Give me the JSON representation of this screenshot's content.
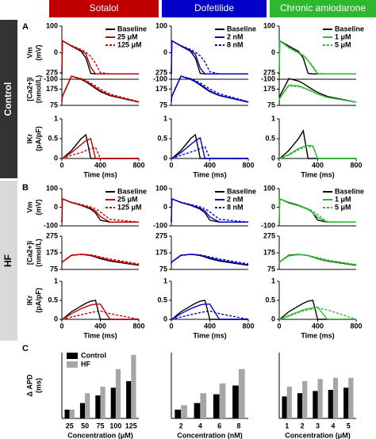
{
  "headers": [
    {
      "name": "Sotalol",
      "color": "#c00000"
    },
    {
      "name": "Dofetilide",
      "color": "#0000c8"
    },
    {
      "name": "Chronic amiodarone",
      "color": "#2eb82e"
    }
  ],
  "groups": [
    {
      "label": "Control",
      "panel": "A",
      "color": "#333333"
    },
    {
      "label": "HF",
      "panel": "B",
      "color": "#d9d9d9"
    }
  ],
  "panel_c": "C",
  "rows": [
    {
      "ylabel": "Vm",
      "yunit": "(mV)",
      "ylim": [
        -100,
        100
      ],
      "yticks": [
        -100,
        0,
        100
      ]
    },
    {
      "ylabel": "[Ca2+]i",
      "yunit": "(nmol/L)",
      "ylim": [
        75,
        275
      ],
      "yticks": [
        75,
        175,
        275
      ]
    },
    {
      "ylabel": "IKr",
      "yunit": "(pA/pF)",
      "ylim": [
        0,
        1
      ],
      "yticks": [
        0,
        0.5,
        1
      ]
    }
  ],
  "chart_data": [
    {
      "type": "line",
      "x": [
        0,
        5,
        100,
        200,
        250,
        300,
        350,
        400,
        500,
        800
      ],
      "xlim": [
        0,
        800
      ],
      "xticks": [
        0,
        400,
        800
      ],
      "xlabel": "Time (ms)",
      "series": [
        {
          "name": "Baseline",
          "color": "#000000",
          "dash": false,
          "values": [
            [
              -80,
              45,
              25,
              5,
              -20,
              -78,
              -80,
              -80,
              -80,
              -80
            ],
            [
              100,
              130,
              255,
              235,
              220,
              200,
              180,
              160,
              135,
              95
            ],
            [
              0,
              0,
              0.2,
              0.5,
              0.6,
              0,
              0,
              0,
              0,
              0
            ]
          ]
        },
        {
          "name": "25 μM",
          "color": "#c00000",
          "dash": false,
          "values": [
            [
              -80,
              45,
              26,
              8,
              -5,
              -55,
              -80,
              -80,
              -80,
              -80
            ],
            [
              100,
              130,
              255,
              237,
              223,
              205,
              185,
              165,
              138,
              96
            ],
            [
              0,
              0,
              0.15,
              0.35,
              0.45,
              0.5,
              0,
              0,
              0,
              0
            ]
          ]
        },
        {
          "name": "125 μM",
          "color": "#c00000",
          "dash": true,
          "values": [
            [
              -80,
              45,
              27,
              12,
              2,
              -15,
              -40,
              -75,
              -80,
              -80
            ],
            [
              100,
              130,
              255,
              240,
              228,
              212,
              195,
              175,
              145,
              98
            ],
            [
              0,
              0,
              0.08,
              0.15,
              0.2,
              0.25,
              0.28,
              0,
              0,
              0
            ]
          ]
        }
      ]
    },
    {
      "type": "line",
      "x": [
        0,
        5,
        100,
        200,
        250,
        300,
        350,
        400,
        500,
        800
      ],
      "xlim": [
        0,
        800
      ],
      "xticks": [
        0,
        400,
        800
      ],
      "xlabel": "Time (ms)",
      "series": [
        {
          "name": "Baseline",
          "color": "#000000",
          "dash": false,
          "values": [
            [
              -80,
              45,
              25,
              5,
              -20,
              -78,
              -80,
              -80,
              -80,
              -80
            ],
            [
              100,
              130,
              255,
              235,
              220,
              200,
              180,
              160,
              135,
              95
            ],
            [
              0,
              0,
              0.2,
              0.5,
              0.6,
              0,
              0,
              0,
              0,
              0
            ]
          ]
        },
        {
          "name": "2 nM",
          "color": "#0000c8",
          "dash": false,
          "values": [
            [
              -80,
              45,
              26,
              8,
              -6,
              -58,
              -80,
              -80,
              -80,
              -80
            ],
            [
              100,
              130,
              255,
              237,
              222,
              204,
              184,
              164,
              137,
              96
            ],
            [
              0,
              0,
              0.15,
              0.35,
              0.45,
              0.52,
              0,
              0,
              0,
              0
            ]
          ]
        },
        {
          "name": "8 nM",
          "color": "#0000c8",
          "dash": true,
          "values": [
            [
              -80,
              45,
              27,
              12,
              2,
              -12,
              -35,
              -72,
              -80,
              -80
            ],
            [
              100,
              130,
              255,
              240,
              228,
              212,
              195,
              176,
              146,
              98
            ],
            [
              0,
              0,
              0.08,
              0.16,
              0.2,
              0.25,
              0.3,
              0,
              0,
              0
            ]
          ]
        }
      ]
    },
    {
      "type": "line",
      "x": [
        0,
        5,
        100,
        200,
        250,
        300,
        350,
        400,
        500,
        800
      ],
      "xlim": [
        0,
        800
      ],
      "xticks": [
        0,
        400,
        800
      ],
      "xlabel": "Time (ms)",
      "series": [
        {
          "name": "Baseline",
          "color": "#000000",
          "dash": false,
          "values": [
            [
              -80,
              45,
              25,
              5,
              -20,
              -78,
              -80,
              -80,
              -80,
              -80
            ],
            [
              100,
              130,
              240,
              225,
              210,
              190,
              172,
              155,
              130,
              95
            ],
            [
              0,
              0,
              0.2,
              0.5,
              0.7,
              0,
              0,
              0,
              0,
              0
            ]
          ]
        },
        {
          "name": "1 μM",
          "color": "#2eb82e",
          "dash": false,
          "values": [
            [
              -80,
              45,
              20,
              0,
              -10,
              -30,
              -55,
              -80,
              -80,
              -80
            ],
            [
              100,
              120,
              200,
              195,
              185,
              172,
              160,
              145,
              125,
              95
            ],
            [
              0,
              0,
              0.1,
              0.25,
              0.3,
              0.33,
              0.32,
              0,
              0,
              0
            ]
          ]
        },
        {
          "name": "5 μM",
          "color": "#2eb82e",
          "dash": true,
          "values": [
            [
              -80,
              45,
              18,
              -2,
              -12,
              -30,
              -50,
              -78,
              -80,
              -80
            ],
            [
              100,
              118,
              195,
              190,
              182,
              170,
              158,
              144,
              124,
              95
            ],
            [
              0,
              0,
              0.08,
              0.22,
              0.27,
              0.3,
              0.3,
              0,
              0,
              0
            ]
          ]
        }
      ]
    },
    {
      "type": "line",
      "x": [
        0,
        5,
        100,
        200,
        250,
        300,
        350,
        400,
        500,
        800
      ],
      "xlim": [
        0,
        800
      ],
      "xticks": [
        0,
        400,
        800
      ],
      "xlabel": "Time (ms)",
      "series": [
        {
          "name": "Baseline",
          "color": "#000000",
          "dash": false,
          "values": [
            [
              -80,
              45,
              25,
              10,
              0,
              -10,
              -30,
              -70,
              -80,
              -80
            ],
            [
              110,
              120,
              160,
              165,
              162,
              158,
              150,
              140,
              125,
              100
            ],
            [
              0,
              0,
              0.2,
              0.35,
              0.42,
              0.48,
              0.5,
              0,
              0,
              0
            ]
          ]
        },
        {
          "name": "25 μM",
          "color": "#c00000",
          "dash": false,
          "values": [
            [
              -80,
              45,
              26,
              12,
              3,
              -5,
              -20,
              -50,
              -80,
              -80
            ],
            [
              110,
              120,
              160,
              166,
              164,
              160,
              153,
              145,
              130,
              102
            ],
            [
              0,
              0,
              0.15,
              0.28,
              0.33,
              0.38,
              0.4,
              0.4,
              0,
              0
            ]
          ]
        },
        {
          "name": "125 μM",
          "color": "#c00000",
          "dash": true,
          "values": [
            [
              -80,
              45,
              27,
              15,
              8,
              2,
              -8,
              -25,
              -65,
              -80
            ],
            [
              110,
              120,
              158,
              166,
              165,
              162,
              157,
              150,
              138,
              108
            ],
            [
              0,
              0,
              0.06,
              0.12,
              0.15,
              0.18,
              0.2,
              0.22,
              0.15,
              0
            ]
          ]
        }
      ]
    },
    {
      "type": "line",
      "x": [
        0,
        5,
        100,
        200,
        250,
        300,
        350,
        400,
        500,
        800
      ],
      "xlim": [
        0,
        800
      ],
      "xticks": [
        0,
        400,
        800
      ],
      "xlabel": "Time (ms)",
      "series": [
        {
          "name": "Baseline",
          "color": "#000000",
          "dash": false,
          "values": [
            [
              -80,
              45,
              25,
              10,
              0,
              -10,
              -30,
              -70,
              -80,
              -80
            ],
            [
              110,
              120,
              160,
              165,
              162,
              158,
              150,
              140,
              125,
              100
            ],
            [
              0,
              0,
              0.2,
              0.35,
              0.42,
              0.48,
              0.5,
              0,
              0,
              0
            ]
          ]
        },
        {
          "name": "2 nM",
          "color": "#0000c8",
          "dash": false,
          "values": [
            [
              -80,
              45,
              26,
              12,
              3,
              -5,
              -20,
              -52,
              -80,
              -80
            ],
            [
              110,
              120,
              160,
              166,
              164,
              160,
              153,
              145,
              130,
              102
            ],
            [
              0,
              0,
              0.15,
              0.28,
              0.33,
              0.38,
              0.4,
              0.4,
              0,
              0
            ]
          ]
        },
        {
          "name": "8 nM",
          "color": "#0000c8",
          "dash": true,
          "values": [
            [
              -80,
              45,
              27,
              15,
              8,
              2,
              -8,
              -25,
              -65,
              -80
            ],
            [
              110,
              120,
              158,
              166,
              165,
              162,
              157,
              150,
              138,
              108
            ],
            [
              0,
              0,
              0.06,
              0.12,
              0.15,
              0.18,
              0.2,
              0.22,
              0.15,
              0
            ]
          ]
        }
      ]
    },
    {
      "type": "line",
      "x": [
        0,
        5,
        100,
        200,
        250,
        300,
        350,
        400,
        500,
        800
      ],
      "xlim": [
        0,
        800
      ],
      "xticks": [
        0,
        400,
        800
      ],
      "xlabel": "Time (ms)",
      "series": [
        {
          "name": "Baseline",
          "color": "#000000",
          "dash": false,
          "values": [
            [
              -80,
              45,
              25,
              10,
              0,
              -10,
              -30,
              -70,
              -80,
              -80
            ],
            [
              110,
              120,
              160,
              165,
              162,
              158,
              150,
              140,
              125,
              100
            ],
            [
              0,
              0,
              0.2,
              0.35,
              0.42,
              0.48,
              0.5,
              0,
              0,
              0
            ]
          ]
        },
        {
          "name": "1 μM",
          "color": "#2eb82e",
          "dash": false,
          "values": [
            [
              -80,
              45,
              22,
              8,
              -2,
              -12,
              -30,
              -55,
              -80,
              -80
            ],
            [
              110,
              120,
              158,
              164,
              162,
              158,
              151,
              142,
              128,
              102
            ],
            [
              0,
              0,
              0.1,
              0.2,
              0.25,
              0.28,
              0.3,
              0.32,
              0,
              0
            ]
          ]
        },
        {
          "name": "5 μM",
          "color": "#2eb82e",
          "dash": true,
          "values": [
            [
              -80,
              45,
              22,
              8,
              0,
              -8,
              -20,
              -40,
              -78,
              -80
            ],
            [
              110,
              120,
              156,
              163,
              162,
              159,
              153,
              146,
              132,
              104
            ],
            [
              0,
              0,
              0.08,
              0.18,
              0.22,
              0.25,
              0.27,
              0.3,
              0.25,
              0
            ]
          ]
        }
      ]
    },
    {
      "type": "bar",
      "ylabel": "Δ APD",
      "yunit": "(ms)",
      "ylim": [
        0,
        300
      ],
      "xlabel": "Concentration (μM)",
      "legend": "top-left",
      "categories": [
        25,
        50,
        75,
        100,
        125
      ],
      "series": [
        {
          "name": "Control",
          "color": "#000000",
          "values": [
            40,
            70,
            105,
            140,
            170
          ]
        },
        {
          "name": "HF",
          "color": "#a6a6a6",
          "values": [
            40,
            115,
            145,
            225,
            290
          ]
        }
      ]
    },
    {
      "type": "bar",
      "ylim": [
        0,
        300
      ],
      "xlabel": "Concentration (nM)",
      "categories": [
        2,
        4,
        6,
        8
      ],
      "series": [
        {
          "name": "Control",
          "color": "#000000",
          "values": [
            40,
            70,
            110,
            150
          ]
        },
        {
          "name": "HF",
          "color": "#a6a6a6",
          "values": [
            60,
            115,
            160,
            225
          ]
        }
      ]
    },
    {
      "type": "bar",
      "ylim": [
        0,
        300
      ],
      "xlabel": "Concentration (μM)",
      "categories": [
        1,
        2,
        3,
        4,
        5
      ],
      "series": [
        {
          "name": "Control",
          "color": "#000000",
          "values": [
            100,
            115,
            125,
            130,
            140
          ]
        },
        {
          "name": "HF",
          "color": "#a6a6a6",
          "values": [
            145,
            170,
            180,
            185,
            185
          ]
        }
      ]
    }
  ]
}
